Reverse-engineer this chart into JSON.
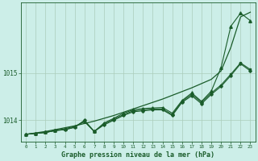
{
  "background_color": "#cceee8",
  "grid_color": "#aaccbb",
  "line_color": "#1a5c2a",
  "xlabel": "Graphe pression niveau de la mer (hPa)",
  "xlim": [
    -0.5,
    23.5
  ],
  "ylim": [
    1013.55,
    1016.5
  ],
  "yticks": [
    1014,
    1015
  ],
  "ytick_labels": [
    "1014",
    "1015"
  ],
  "xticks": [
    0,
    1,
    2,
    3,
    4,
    5,
    6,
    7,
    8,
    9,
    10,
    11,
    12,
    13,
    14,
    15,
    16,
    17,
    18,
    19,
    20,
    21,
    22,
    23
  ],
  "series_smooth": [
    1013.7,
    1013.73,
    1013.76,
    1013.8,
    1013.84,
    1013.88,
    1013.93,
    1013.98,
    1014.04,
    1014.1,
    1014.17,
    1014.24,
    1014.31,
    1014.38,
    1014.45,
    1014.53,
    1014.61,
    1014.69,
    1014.78,
    1014.87,
    1015.05,
    1015.55,
    1016.2,
    1016.3
  ],
  "series_markers1": [
    1013.7,
    1013.72,
    1013.74,
    1013.78,
    1013.8,
    1013.85,
    1014.0,
    1013.76,
    1013.9,
    1014.0,
    1014.1,
    1014.18,
    1014.2,
    1014.22,
    1014.22,
    1014.1,
    1014.38,
    1014.52,
    1014.35,
    1014.55,
    1014.72,
    1014.95,
    1015.2,
    1015.05
  ],
  "series_markers2": [
    1013.7,
    1013.72,
    1013.74,
    1013.78,
    1013.8,
    1013.85,
    1013.98,
    1013.76,
    1013.92,
    1014.02,
    1014.12,
    1014.2,
    1014.22,
    1014.24,
    1014.24,
    1014.12,
    1014.4,
    1014.55,
    1014.38,
    1014.58,
    1014.75,
    1014.98,
    1015.22,
    1015.08
  ],
  "series_top": [
    1013.7,
    1013.72,
    1013.74,
    1013.78,
    1013.82,
    1013.87,
    1013.97,
    1013.76,
    1013.94,
    1014.04,
    1014.15,
    1014.22,
    1014.25,
    1014.26,
    1014.27,
    1014.15,
    1014.42,
    1014.58,
    1014.4,
    1014.62,
    1015.12,
    1016.0,
    1016.28,
    1016.12
  ]
}
